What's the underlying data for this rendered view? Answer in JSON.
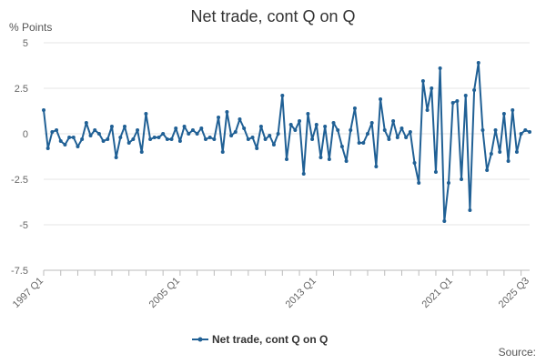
{
  "chart_data": {
    "type": "line",
    "title": "Net trade, cont Q on Q",
    "ylabel": "% Points",
    "ylim": [
      -7.5,
      5
    ],
    "yticks": [
      5,
      2.5,
      0,
      -2.5,
      -5,
      -7.5
    ],
    "ytick_labels": [
      "5",
      "2.5",
      "0",
      "-2.5",
      "-5",
      "-7.5"
    ],
    "x_start": "1997 Q1",
    "x_end": "2025 Q3",
    "xtick_labels": [
      "1997 Q1",
      "2005 Q1",
      "2013 Q1",
      "2021 Q1",
      "2025 Q3"
    ],
    "x": [
      "1997 Q1",
      "1997 Q2",
      "1997 Q3",
      "1997 Q4",
      "1998 Q1",
      "1998 Q2",
      "1998 Q3",
      "1998 Q4",
      "1999 Q1",
      "1999 Q2",
      "1999 Q3",
      "1999 Q4",
      "2000 Q1",
      "2000 Q2",
      "2000 Q3",
      "2000 Q4",
      "2001 Q1",
      "2001 Q2",
      "2001 Q3",
      "2001 Q4",
      "2002 Q1",
      "2002 Q2",
      "2002 Q3",
      "2002 Q4",
      "2003 Q1",
      "2003 Q2",
      "2003 Q3",
      "2003 Q4",
      "2004 Q1",
      "2004 Q2",
      "2004 Q3",
      "2004 Q4",
      "2005 Q1",
      "2005 Q2",
      "2005 Q3",
      "2005 Q4",
      "2006 Q1",
      "2006 Q2",
      "2006 Q3",
      "2006 Q4",
      "2007 Q1",
      "2007 Q2",
      "2007 Q3",
      "2007 Q4",
      "2008 Q1",
      "2008 Q2",
      "2008 Q3",
      "2008 Q4",
      "2009 Q1",
      "2009 Q2",
      "2009 Q3",
      "2009 Q4",
      "2010 Q1",
      "2010 Q2",
      "2010 Q3",
      "2010 Q4",
      "2011 Q1",
      "2011 Q2",
      "2011 Q3",
      "2011 Q4",
      "2012 Q1",
      "2012 Q2",
      "2012 Q3",
      "2012 Q4",
      "2013 Q1",
      "2013 Q2",
      "2013 Q3",
      "2013 Q4",
      "2014 Q1",
      "2014 Q2",
      "2014 Q3",
      "2014 Q4",
      "2015 Q1",
      "2015 Q2",
      "2015 Q3",
      "2015 Q4",
      "2016 Q1",
      "2016 Q2",
      "2016 Q3",
      "2016 Q4",
      "2017 Q1",
      "2017 Q2",
      "2017 Q3",
      "2017 Q4",
      "2018 Q1",
      "2018 Q2",
      "2018 Q3",
      "2018 Q4",
      "2019 Q1",
      "2019 Q2",
      "2019 Q3",
      "2019 Q4",
      "2020 Q1",
      "2020 Q2",
      "2020 Q3",
      "2020 Q4",
      "2021 Q1",
      "2021 Q2",
      "2021 Q3",
      "2021 Q4",
      "2022 Q1",
      "2022 Q2",
      "2022 Q3",
      "2022 Q4",
      "2023 Q1",
      "2023 Q2",
      "2023 Q3",
      "2023 Q4",
      "2024 Q1",
      "2024 Q2",
      "2024 Q3",
      "2024 Q4",
      "2025 Q1",
      "2025 Q2",
      "2025 Q3"
    ],
    "series": [
      {
        "name": "Net trade, cont Q on Q",
        "color": "#206095",
        "values": [
          1.3,
          -0.8,
          0.1,
          0.2,
          -0.4,
          -0.6,
          -0.2,
          -0.2,
          -0.7,
          -0.3,
          0.6,
          -0.1,
          0.2,
          0.0,
          -0.4,
          -0.3,
          0.4,
          -1.3,
          -0.2,
          0.4,
          -0.5,
          -0.3,
          0.2,
          -1.0,
          1.1,
          -0.3,
          -0.2,
          -0.2,
          0.0,
          -0.3,
          -0.3,
          0.3,
          -0.4,
          0.4,
          0.0,
          0.2,
          0.0,
          0.3,
          -0.3,
          -0.2,
          -0.3,
          0.9,
          -1.0,
          1.2,
          -0.1,
          0.1,
          0.8,
          0.3,
          -0.3,
          -0.2,
          -0.8,
          0.4,
          -0.3,
          -0.1,
          -0.6,
          0.0,
          2.1,
          -1.4,
          0.5,
          0.2,
          0.7,
          -2.2,
          1.1,
          -0.3,
          0.5,
          -1.3,
          0.4,
          -1.4,
          0.6,
          0.2,
          -0.7,
          -1.5,
          0.2,
          1.4,
          -0.5,
          -0.5,
          0.0,
          0.6,
          -1.8,
          1.9,
          0.2,
          -0.3,
          0.7,
          -0.2,
          0.3,
          -0.2,
          0.1,
          -1.6,
          -2.7,
          2.9,
          1.3,
          2.5,
          -2.1,
          3.6,
          -4.8,
          -2.7,
          1.7,
          1.8,
          -2.5,
          2.1,
          -4.2,
          2.4,
          3.9,
          0.2,
          -2.0,
          -1.1,
          0.2,
          -1.0,
          1.1,
          -1.5,
          1.3,
          -1.0,
          0.0,
          0.2,
          0.1
        ]
      }
    ],
    "legend_position": "bottom-center",
    "grid": "horizontal"
  },
  "page": {
    "source_label": "Source:"
  }
}
